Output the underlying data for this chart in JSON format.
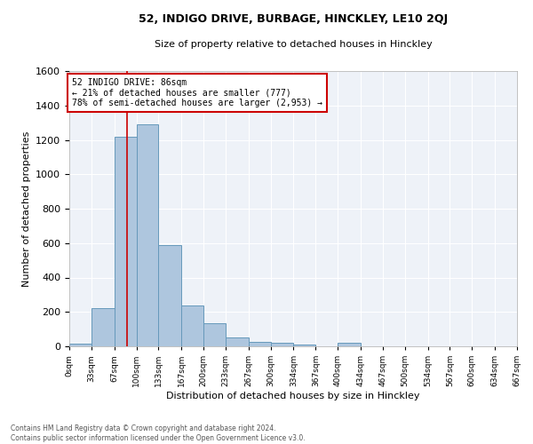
{
  "title": "52, INDIGO DRIVE, BURBAGE, HINCKLEY, LE10 2QJ",
  "subtitle": "Size of property relative to detached houses in Hinckley",
  "xlabel": "Distribution of detached houses by size in Hinckley",
  "ylabel": "Number of detached properties",
  "bar_color": "#aec6de",
  "bar_edge_color": "#6699bb",
  "background_color": "#eef2f8",
  "grid_color": "white",
  "annotation_box_color": "#cc0000",
  "annotation_line_color": "#cc0000",
  "property_line_x": 86,
  "annotation_text_line1": "52 INDIGO DRIVE: 86sqm",
  "annotation_text_line2": "← 21% of detached houses are smaller (777)",
  "annotation_text_line3": "78% of semi-detached houses are larger (2,953) →",
  "footer_line1": "Contains HM Land Registry data © Crown copyright and database right 2024.",
  "footer_line2": "Contains public sector information licensed under the Open Government Licence v3.0.",
  "bin_edges": [
    0,
    33,
    67,
    100,
    133,
    167,
    200,
    233,
    267,
    300,
    334,
    367,
    400,
    434,
    467,
    500,
    534,
    567,
    600,
    634,
    667
  ],
  "bin_counts": [
    15,
    220,
    1220,
    1290,
    590,
    237,
    135,
    50,
    25,
    20,
    12,
    0,
    20,
    0,
    0,
    0,
    0,
    0,
    0,
    0
  ],
  "ylim": [
    0,
    1600
  ],
  "yticks": [
    0,
    200,
    400,
    600,
    800,
    1000,
    1200,
    1400,
    1600
  ],
  "tick_labels": [
    "0sqm",
    "33sqm",
    "67sqm",
    "100sqm",
    "133sqm",
    "167sqm",
    "200sqm",
    "233sqm",
    "267sqm",
    "300sqm",
    "334sqm",
    "367sqm",
    "400sqm",
    "434sqm",
    "467sqm",
    "500sqm",
    "534sqm",
    "567sqm",
    "600sqm",
    "634sqm",
    "667sqm"
  ]
}
